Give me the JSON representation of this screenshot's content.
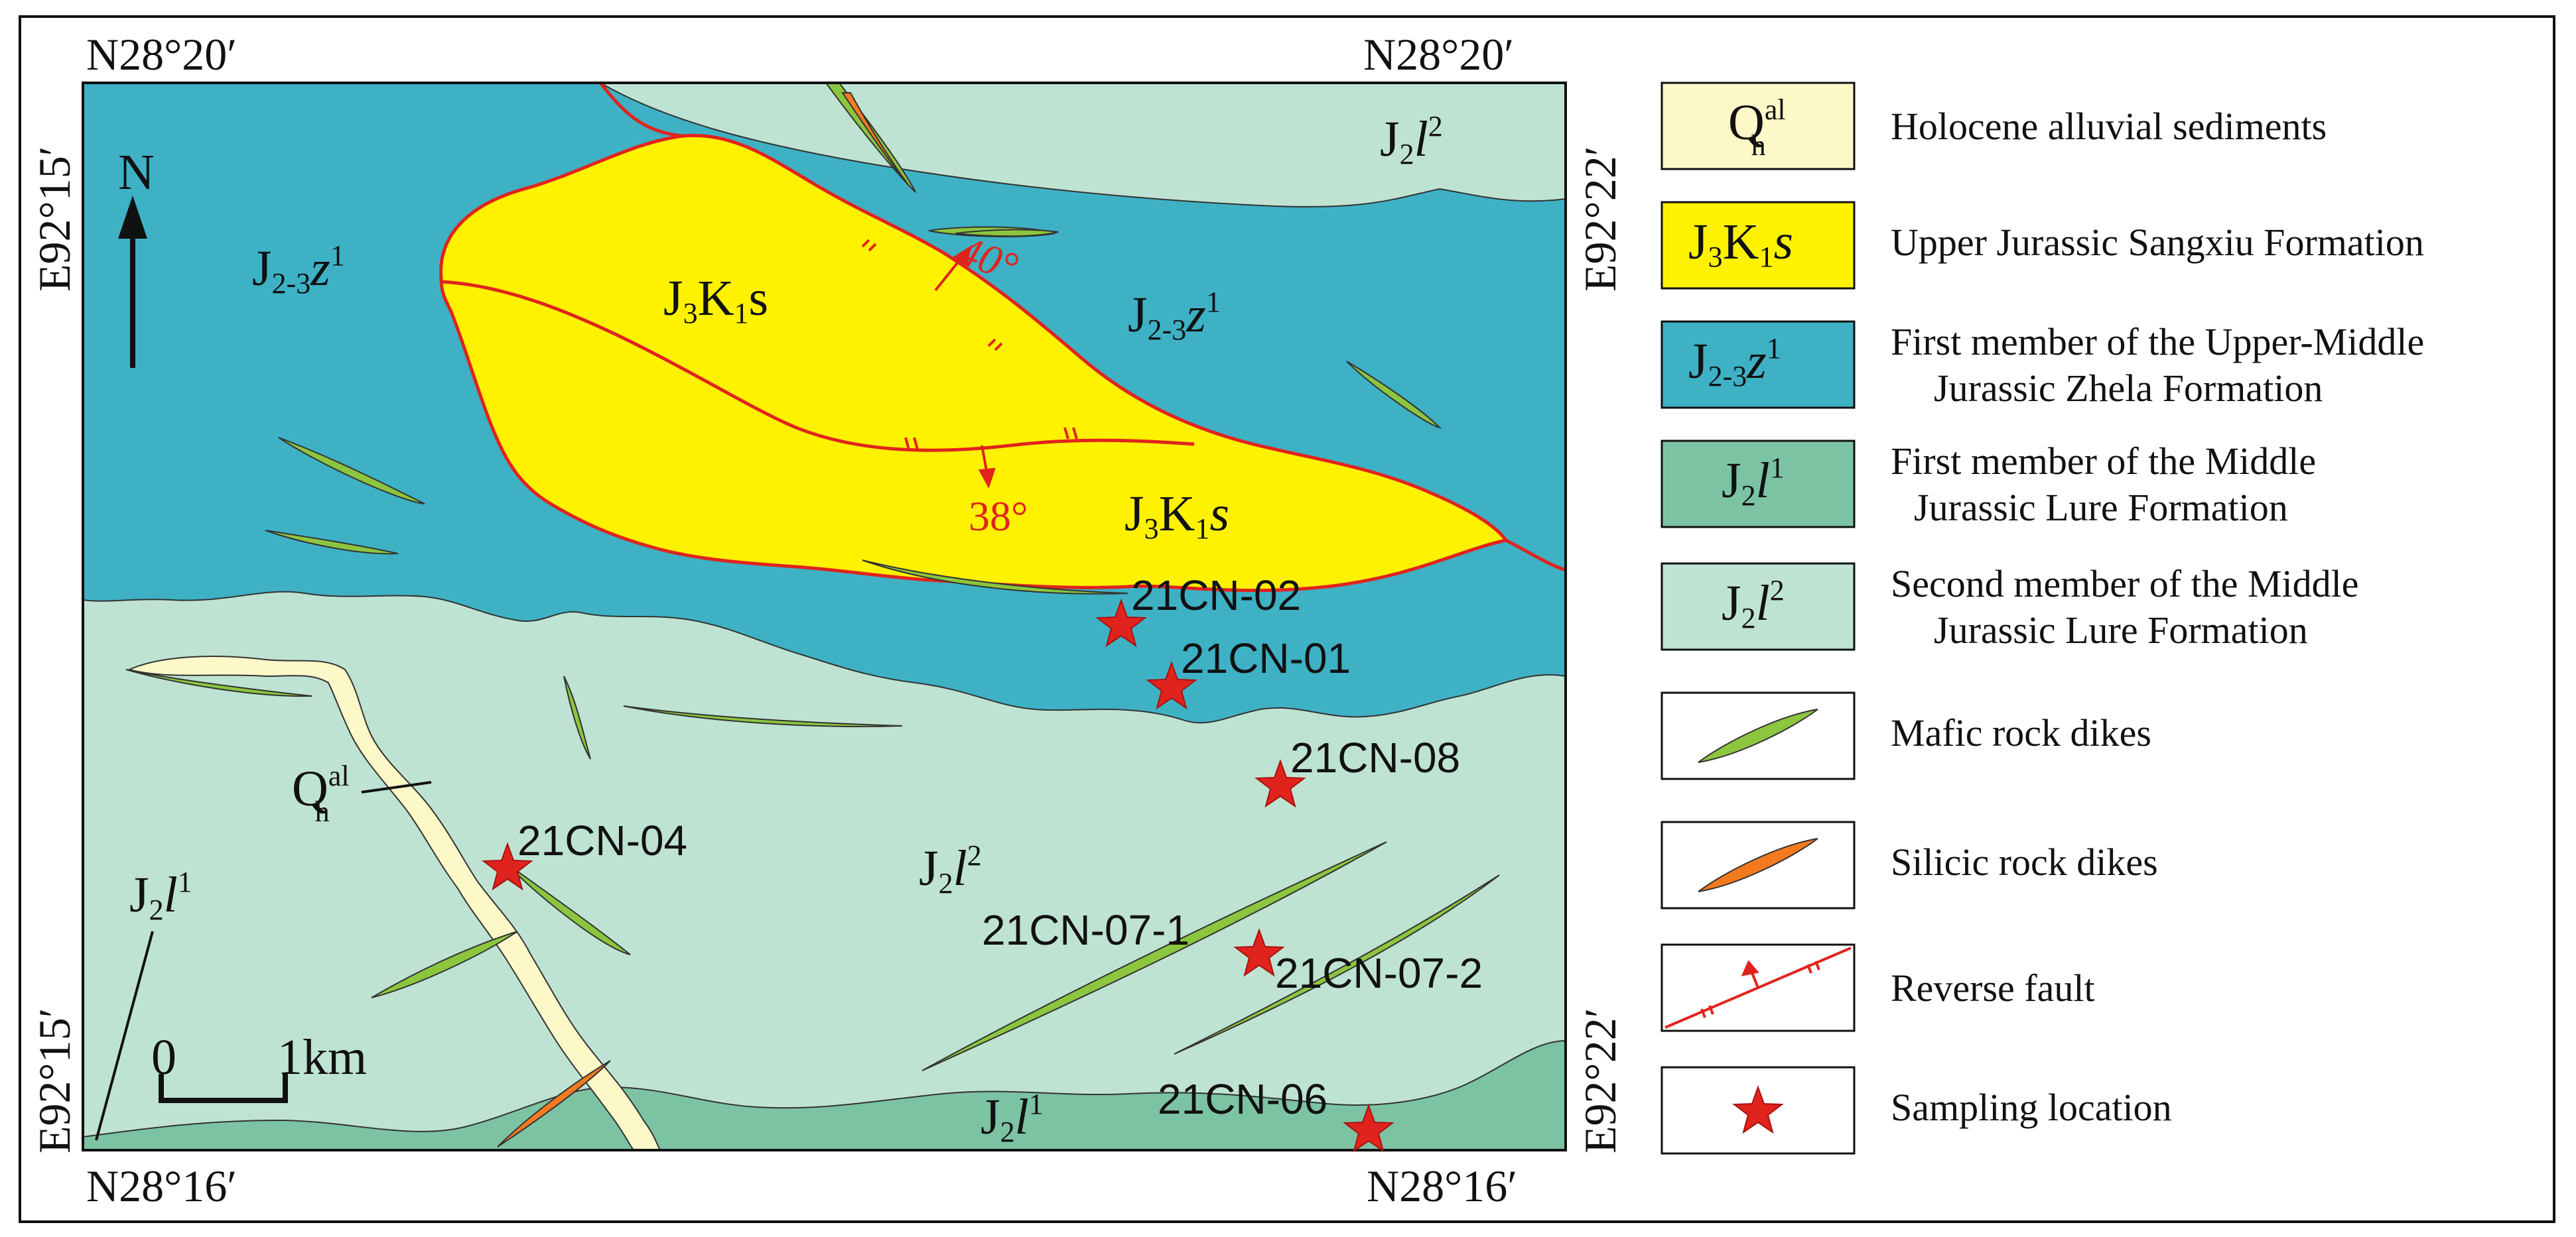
{
  "corner_coordinates": {
    "top_left_lat": "N28°20′",
    "top_right_lat": "N28°20′",
    "bottom_left_lat": "N28°16′",
    "bottom_right_lat": "N28°16′",
    "left_top_lon": "E92°15′",
    "left_bottom_lon": "E92°15′",
    "right_top_lon": "E92°22′",
    "right_bottom_lon": "E92°22′"
  },
  "north_arrow": {
    "label": "N"
  },
  "scale_bar": {
    "zero": "0",
    "label": "1km"
  },
  "dip_angles": {
    "fault_north": "40°",
    "fault_south": "38°"
  },
  "unit_labels": {
    "jz_main": {
      "base": "J",
      "sub": "2-3",
      "letter": "z",
      "sup": "1"
    },
    "jz_center": {
      "base": "J",
      "sub": "2-3",
      "letter": "z",
      "sup": "1"
    },
    "jk_north": {
      "base": "J",
      "sub": "3",
      "mid": "K",
      "sub2": "1",
      "letter": "s"
    },
    "jk_south": {
      "base": "J",
      "sub": "3",
      "mid": "K",
      "sub2": "1",
      "letter": "s"
    },
    "jl2_ne": {
      "base": "J",
      "sub": "2",
      "letter": "l",
      "sup": "2"
    },
    "jl2_center": {
      "base": "J",
      "sub": "2",
      "letter": "l",
      "sup": "2"
    },
    "jl1_left": {
      "base": "J",
      "sub": "2",
      "letter": "l",
      "sup": "1"
    },
    "jl1_bottom": {
      "base": "J",
      "sub": "2",
      "letter": "l",
      "sup": "1"
    },
    "qh": {
      "base": "Q",
      "sub": "h",
      "sup": "al"
    }
  },
  "samples": [
    {
      "id": "21CN-02"
    },
    {
      "id": "21CN-01"
    },
    {
      "id": "21CN-08"
    },
    {
      "id": "21CN-04"
    },
    {
      "id": "21CN-07-1"
    },
    {
      "id": "21CN-07-2"
    },
    {
      "id": "21CN-06"
    }
  ],
  "legend": {
    "items": [
      {
        "symbol": {
          "base": "Q",
          "sub": "h",
          "sup": "al"
        },
        "label": "Holocene alluvial sediments",
        "color": "#fdf8c8"
      },
      {
        "symbol": {
          "base": "J",
          "sub": "3",
          "mid": "K",
          "sub2": "1",
          "letter": "s"
        },
        "label": "Upper Jurassic Sangxiu Formation",
        "color": "#fff200"
      },
      {
        "symbol": {
          "base": "J",
          "sub": "2-3",
          "letter": "z",
          "sup": "1"
        },
        "label_lines": [
          "First member of the Upper-Middle",
          "Jurassic Zhela Formation"
        ],
        "color": "#3eb1c5"
      },
      {
        "symbol": {
          "base": "J",
          "sub": "2",
          "letter": "l",
          "sup": "1"
        },
        "label_lines": [
          "First member of the Middle",
          "Jurassic Lure Formation"
        ],
        "color": "#7cc3a3"
      },
      {
        "symbol": {
          "base": "J",
          "sub": "2",
          "letter": "l",
          "sup": "2"
        },
        "label_lines": [
          "Second member of the Middle",
          "Jurassic Lure Formation"
        ],
        "color": "#bfe3d2"
      },
      {
        "label": "Mafic rock dikes",
        "color": "#8cc63f"
      },
      {
        "label": "Silicic rock dikes",
        "color": "#f47a20"
      },
      {
        "label": "Reverse fault",
        "color": "#e0241d"
      },
      {
        "label": "Sampling location",
        "color": "#e0241d"
      }
    ]
  },
  "colors": {
    "alluvial": "#fdf8c8",
    "sangxiu": "#fff200",
    "zhela": "#3eb1c5",
    "lure1": "#7cc3a3",
    "lure2": "#bfe3d2",
    "mafic": "#8cc63f",
    "silicic": "#f47a20",
    "fault": "#e0241d",
    "star": "#e0241d"
  }
}
